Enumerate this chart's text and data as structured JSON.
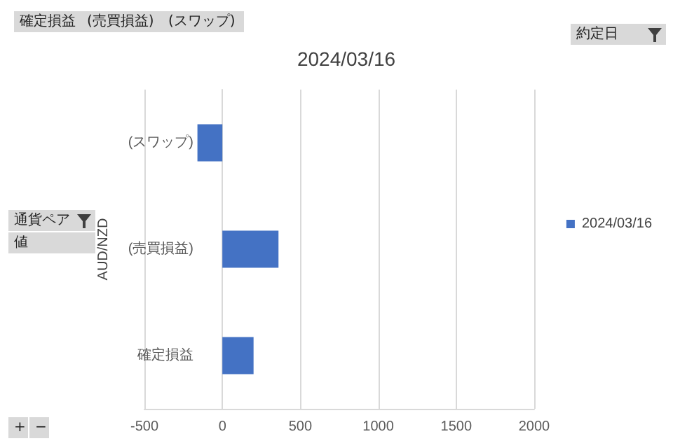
{
  "chart_data": {
    "type": "bar",
    "orientation": "horizontal",
    "title": "2024/03/16",
    "ylabel": "AUD/NZD",
    "categories": [
      "(スワップ)",
      "(売買損益)",
      "確定損益"
    ],
    "series": [
      {
        "name": "2024/03/16",
        "color": "#4472c4",
        "values": [
          -160,
          360,
          200
        ]
      }
    ],
    "xlim": [
      -500,
      2000
    ],
    "xticks": [
      -500,
      0,
      500,
      1000,
      1500,
      2000
    ],
    "grid": "x",
    "legend": "right",
    "annotations": [
      "確定損益",
      "(売買損益)",
      "(スワップ)",
      "約定日",
      "通貨ペア",
      "値",
      "+",
      "−"
    ]
  }
}
